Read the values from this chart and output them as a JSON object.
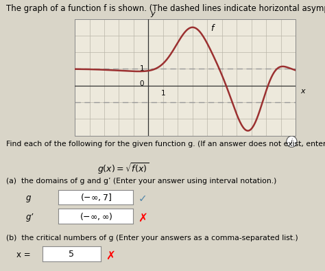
{
  "title_text": "The graph of a function f is shown. (The dashed lines indicate horizontal asymptotes.)",
  "bg_color": "#d9d5c8",
  "graph_bg": "#ede9dc",
  "curve_color": "#9b3030",
  "grid_color": "#b8b4a8",
  "dashed_color": "#999999",
  "asym_y1": 1.0,
  "asym_y2": -1.0,
  "xlim": [
    -5,
    10
  ],
  "ylim": [
    -3,
    4
  ],
  "title_fontsize": 8.5,
  "fs_body": 8.0,
  "answer_box_g": "(-∞,7]",
  "answer_box_gprime": "(-∞,∞)",
  "answer_box_b": "5"
}
